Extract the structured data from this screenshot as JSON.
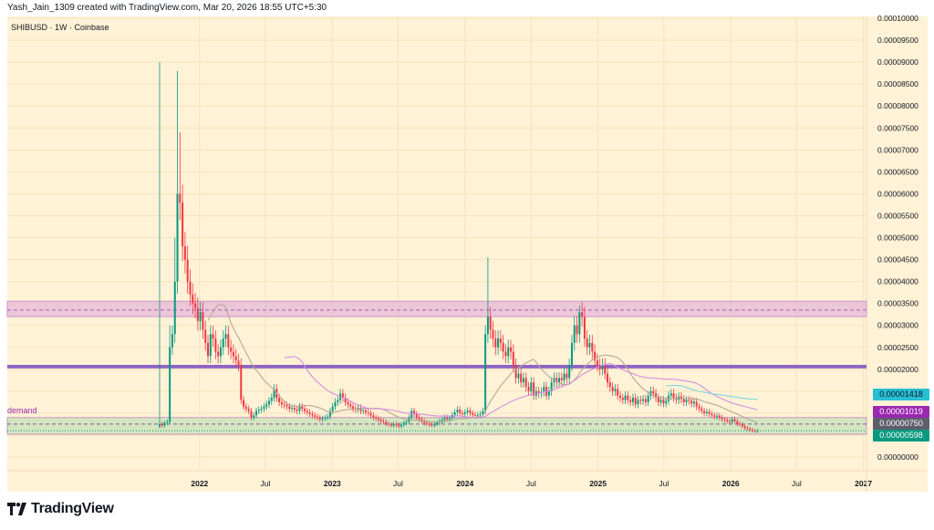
{
  "header": {
    "credit": "Yash_Jain_1309 created with TradingView.com, Mar 20, 2026 18:55 UTC+5:30",
    "ticker": "SHIBUSD · 1W · Coinbase"
  },
  "brand": {
    "name": "TradingView",
    "logo_icon": "tradingview-logo-icon"
  },
  "colors": {
    "background": "#fff2d6",
    "up": "#089981",
    "down": "#f23645",
    "sma_fast": "#b5a998",
    "sma_mid": "#d48ee0",
    "sma_slow": "#7fd6dd"
  },
  "chart_data": {
    "type": "candlestick",
    "symbol": "SHIBUSD",
    "interval": "1W",
    "exchange": "Coinbase",
    "first_week": "2021-09-13",
    "ylim": [
      0,
      0.0001
    ],
    "y_ticks": [
      "0.00010000",
      "0.00009500",
      "0.00009000",
      "0.00008500",
      "0.00008000",
      "0.00007500",
      "0.00007000",
      "0.00006500",
      "0.00006000",
      "0.00005500",
      "0.00005000",
      "0.00004500",
      "0.00004000",
      "0.00003500",
      "0.00003000",
      "0.00002500",
      "0.00002000",
      "0.00001500",
      "0.00001000",
      "0.00000500",
      "0.00000000"
    ],
    "x_ticks": [
      {
        "label": "2022",
        "date": "2022-01-01"
      },
      {
        "label": "Jul",
        "date": "2022-07-01"
      },
      {
        "label": "2023",
        "date": "2023-01-01"
      },
      {
        "label": "Jul",
        "date": "2023-07-01"
      },
      {
        "label": "2024",
        "date": "2024-01-01"
      },
      {
        "label": "Jul",
        "date": "2024-07-01"
      },
      {
        "label": "2025",
        "date": "2025-01-01"
      },
      {
        "label": "Jul",
        "date": "2025-07-01"
      },
      {
        "label": "2026",
        "date": "2026-01-01"
      },
      {
        "label": "Jul",
        "date": "2026-07-01"
      },
      {
        "label": "2027",
        "date": "2027-01-01"
      }
    ],
    "weekly_close": [
      7.5e-06,
      7.2e-06,
      7.8e-06,
      8e-06,
      2.5e-05,
      2.8e-05,
      4e-05,
      6e-05,
      5.8e-05,
      4.8e-05,
      4.5e-05,
      4e-05,
      3.7e-05,
      3.5e-05,
      3.4e-05,
      3.1e-05,
      3.3e-05,
      2.9e-05,
      2.6e-05,
      2.3e-05,
      2.8e-05,
      2.7e-05,
      2.4e-05,
      2.3e-05,
      2.5e-05,
      2.7e-05,
      2.8e-05,
      2.5e-05,
      2.4e-05,
      2.3e-05,
      2.2e-05,
      2.1e-05,
      1.3e-05,
      1.15e-05,
      1.1e-05,
      1.05e-05,
      9e-06,
      9.5e-06,
      1.05e-05,
      1.08e-05,
      1.1e-05,
      1.15e-05,
      1.2e-05,
      1.28e-05,
      1.35e-05,
      1.55e-05,
      1.35e-05,
      1.25e-05,
      1.2e-05,
      1.18e-05,
      1.15e-05,
      1.1e-05,
      1.12e-05,
      1.08e-05,
      1.05e-05,
      1.15e-05,
      1.1e-05,
      1.05e-05,
      1.02e-05,
      9.8e-06,
      9.5e-06,
      9.2e-06,
      9e-06,
      8.6e-06,
      8.8e-06,
      9e-06,
      9.2e-06,
      1.05e-05,
      1.15e-05,
      1.25e-05,
      1.3e-05,
      1.45e-05,
      1.35e-05,
      1.25e-05,
      1.2e-05,
      1.15e-05,
      1.1e-05,
      1.08e-05,
      1.12e-05,
      1.05e-05,
      1.06e-05,
      1.02e-05,
      1e-05,
      9.5e-06,
      9e-06,
      8.8e-06,
      8.5e-06,
      8.2e-06,
      8e-06,
      7.6e-06,
      7.4e-06,
      7.2e-06,
      7.5e-06,
      7.3e-06,
      7e-06,
      7.4e-06,
      7.8e-06,
      8e-06,
      9e-06,
      1.05e-05,
      9.8e-06,
      9e-06,
      8.6e-06,
      8.2e-06,
      7.8e-06,
      7.6e-06,
      7.4e-06,
      7.2e-06,
      7.6e-06,
      7.8e-06,
      8.2e-06,
      8.5e-06,
      9e-06,
      8.6e-06,
      8.9e-06,
      9.6e-06,
      1.02e-05,
      1.08e-05,
      1e-05,
      9.8e-06,
      1.02e-05,
      1.06e-05,
      1e-05,
      9.6e-06,
      9.4e-06,
      9.6e-06,
      9.8e-06,
      1.05e-05,
      2.8e-05,
      3.2e-05,
      2.9e-05,
      2.7e-05,
      2.5e-05,
      2.7e-05,
      2.6e-05,
      2.4e-05,
      2.3e-05,
      2.5e-05,
      2.4e-05,
      2.1e-05,
      1.8e-05,
      1.9e-05,
      1.7e-05,
      1.8e-05,
      1.6e-05,
      1.5e-05,
      1.7e-05,
      1.4e-05,
      1.5e-05,
      1.45e-05,
      1.48e-05,
      1.6e-05,
      1.4e-05,
      1.5e-05,
      1.7e-05,
      1.8e-05,
      1.7e-05,
      1.8e-05,
      1.75e-05,
      1.9e-05,
      1.8e-05,
      2.1e-05,
      2.6e-05,
      3e-05,
      2.8e-05,
      3.3e-05,
      3.2e-05,
      2.7e-05,
      2.5e-05,
      2.6e-05,
      2.4e-05,
      2.2e-05,
      2.1e-05,
      2e-05,
      2.1e-05,
      1.9e-05,
      1.7e-05,
      1.6e-05,
      1.5e-05,
      1.55e-05,
      1.4e-05,
      1.35e-05,
      1.3e-05,
      1.4e-05,
      1.3e-05,
      1.25e-05,
      1.35e-05,
      1.2e-05,
      1.3e-05,
      1.28e-05,
      1.32e-05,
      1.25e-05,
      1.4e-05,
      1.5e-05,
      1.45e-05,
      1.35e-05,
      1.25e-05,
      1.3e-05,
      1.22e-05,
      1.28e-05,
      1.4e-05,
      1.45e-05,
      1.35e-05,
      1.3e-05,
      1.38e-05,
      1.32e-05,
      1.25e-05,
      1.3e-05,
      1.28e-05,
      1.22e-05,
      1.26e-05,
      1.15e-05,
      1.1e-05,
      1.05e-05,
      1e-05,
      1.03e-05,
      9.8e-06,
      9.5e-06,
      9.2e-06,
      9.4e-06,
      9e-06,
      8.6e-06,
      8.5e-06,
      8.2e-06,
      8e-06,
      8.6e-06,
      8.2e-06,
      7.6e-06,
      7.4e-06,
      7e-06,
      6.6e-06,
      6.4e-06,
      6.2e-06,
      6e-06,
      5.9e-06,
      5.98e-06
    ],
    "notable_highs": [
      {
        "week": 0,
        "high": 9e-05
      },
      {
        "week": 4,
        "high": 3e-05
      },
      {
        "week": 6,
        "high": 5e-05
      },
      {
        "week": 7,
        "high": 8.8e-05
      },
      {
        "week": 8,
        "high": 7.4e-05
      },
      {
        "week": 129,
        "high": 4.55e-05
      },
      {
        "week": 165,
        "high": 3.45e-05
      }
    ],
    "moving_averages": [
      {
        "length": 20,
        "color": "#b5a998",
        "last": "0.00000750"
      },
      {
        "length": 50,
        "color": "#d48ee0",
        "last": "0.00001019"
      },
      {
        "length": 200,
        "color": "#7fd6dd",
        "last": "0.00001418"
      }
    ],
    "zones": [
      {
        "kind": "supply",
        "top": 3.55e-05,
        "bottom": 3.2e-05,
        "mid": 3.35e-05,
        "fill": "#e6b8d8"
      },
      {
        "kind": "level",
        "top": 2.1e-05,
        "bottom": 2.02e-05,
        "fill": "#8e63c4"
      },
      {
        "kind": "demand",
        "label": "demand",
        "top": 9e-06,
        "bottom": 5.2e-06,
        "mid": 7.5e-06,
        "fill": "#d3e6bf"
      }
    ],
    "price_badges": [
      {
        "value": "0.00001418",
        "color": "#26bfd3"
      },
      {
        "value": "0.00001019",
        "color": "#9c27b0"
      },
      {
        "value": "0.00000750",
        "color": "#5d606b"
      },
      {
        "value": "0.00000598",
        "color": "#089981"
      }
    ],
    "last_price": "0.00000598"
  }
}
